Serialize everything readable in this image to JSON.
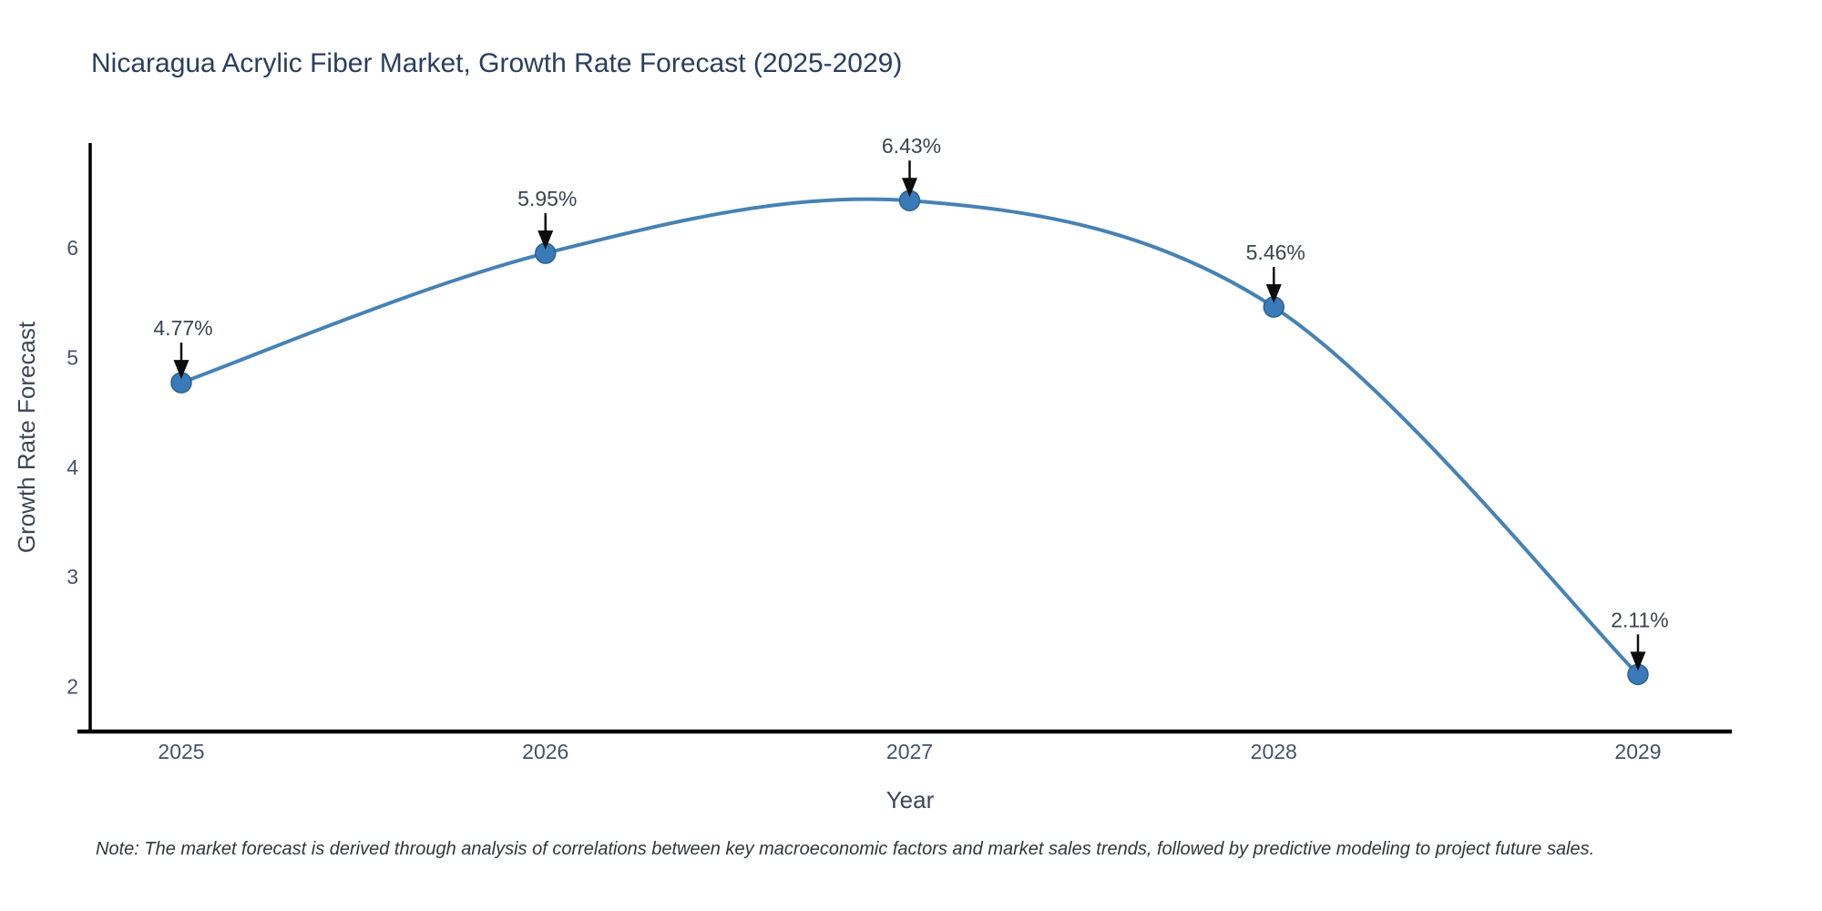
{
  "chart_data": {
    "type": "line",
    "title": "Nicaragua Acrylic Fiber Market, Growth Rate Forecast (2025-2029)",
    "xlabel": "Year",
    "ylabel": "Growth Rate Forecast",
    "categories": [
      "2025",
      "2026",
      "2027",
      "2028",
      "2029"
    ],
    "series": [
      {
        "name": "Growth Rate Forecast",
        "values": [
          4.77,
          5.95,
          6.43,
          5.46,
          2.11
        ],
        "point_labels": [
          "4.77%",
          "5.95%",
          "6.43%",
          "5.46%",
          "2.11%"
        ]
      }
    ],
    "y_ticks": [
      2,
      3,
      4,
      5,
      6
    ],
    "ylim": [
      1.57,
      6.93
    ],
    "grid": false,
    "legend_position": "none",
    "line_smoothing": "spline",
    "annotations_style": "value label with downward black arrow to each marker",
    "colors": {
      "line": "#4682b4",
      "marker_fill": "#3a7ab8",
      "marker_edge": "#2d628f",
      "axis": "#000000",
      "arrow": "#0d0d0d",
      "title_text": "#2a3f5f",
      "tick_text": "#42526b",
      "annotation_text": "#3d434b",
      "note_text": "#33363a"
    },
    "note": "Note: The market forecast is derived through analysis of correlations between key macroeconomic factors and market sales trends, followed by predictive modeling to project future sales."
  }
}
